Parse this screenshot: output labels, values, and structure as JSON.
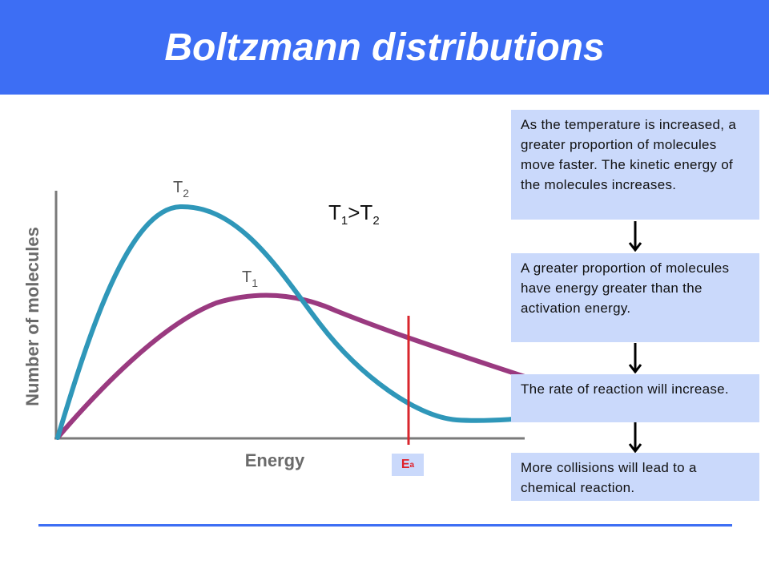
{
  "title": "Boltzmann distributions",
  "diagram": {
    "y_axis_label": "Number of molecules",
    "x_axis_label": "Energy",
    "curve_t2_label": "T",
    "curve_t2_sub": "2",
    "curve_t1_label": "T",
    "curve_t1_sub": "1",
    "relation": {
      "t": "T",
      "sub1": "1",
      "op": ">",
      "sub2": "2"
    },
    "activation_energy": {
      "label": "E",
      "sub": "a"
    },
    "colors": {
      "t2_curve": "#2f97b9",
      "t1_curve": "#9a3a80",
      "ea_line": "#d9262d",
      "axis": "#7a7a7a"
    }
  },
  "steps": [
    "As the temperature is increased, a greater proportion of molecules move faster. The kinetic energy of the molecules increases.",
    "A greater proportion of molecules have energy greater than the activation energy.",
    "The rate of reaction will increase.",
    "More collisions will lead to a chemical reaction."
  ],
  "colors": {
    "header": "#3d6ef4",
    "box": "#cad9fb"
  }
}
